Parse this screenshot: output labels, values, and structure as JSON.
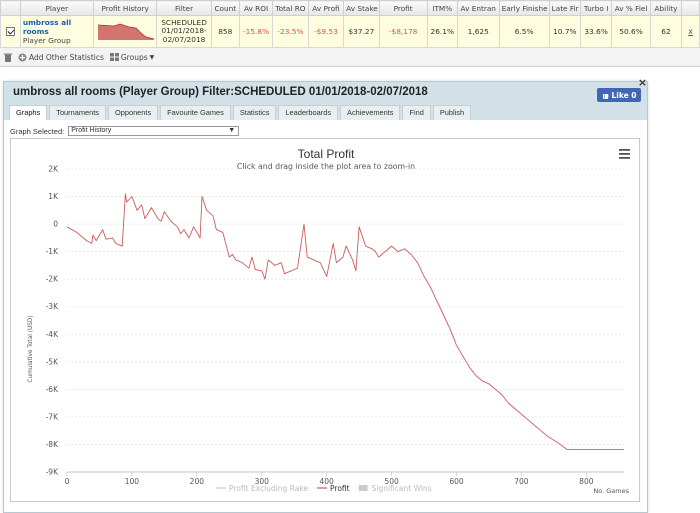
{
  "grid": {
    "headers": [
      "Player",
      "Profit History",
      "Filter",
      "Count",
      "Av ROI",
      "Total RO",
      "Av Profi",
      "Av Stake",
      "Profit",
      "ITM%",
      "Av Entran",
      "Early Finishe",
      "Late Fir",
      "Turbo I",
      "Av % Fiel",
      "Ability"
    ],
    "row": {
      "player_name": "umbross all rooms",
      "player_group": "Player Group",
      "filter_line1": "SCHEDULED",
      "filter_line2": "01/01/2018-",
      "filter_line3": "02/07/2018",
      "count": "858",
      "av_roi": "-15.8%",
      "total_roi": "-23.5%",
      "av_profit": "-$9.53",
      "av_stake": "$37.27",
      "profit": "-$8,178",
      "itm": "26.1%",
      "av_entrants": "1,625",
      "early_finish": "6.5%",
      "late_finish": "10.7%",
      "turbo": "33.6%",
      "av_field": "50.6%",
      "ability": "62",
      "remove": "x"
    },
    "toolbar": {
      "add_stats": "Add Other Statistics",
      "groups": "Groups"
    }
  },
  "dialog": {
    "title": "umbross all rooms (Player Group) Filter:SCHEDULED 01/01/2018-02/07/2018",
    "close": "×",
    "like_label": "Like 0",
    "tabs": [
      "Graphs",
      "Tournaments",
      "Opponents",
      "Favourite Games",
      "Statistics",
      "Leaderboards",
      "Achievements",
      "Find",
      "Publish"
    ],
    "graph_selected_label": "Graph Selected:",
    "graph_selected_value": "Profit History"
  },
  "chart_data": {
    "type": "line",
    "title": "Total Profit",
    "subtitle": "Click and drag inside the plot area to zoom-in",
    "ylabel": "Cumulative Total (USD)",
    "xlabel": "No. Games",
    "xlim": [
      0,
      858
    ],
    "ylim": [
      -9000,
      2000
    ],
    "x_ticks": [
      0,
      100,
      200,
      300,
      400,
      500,
      600,
      700,
      800
    ],
    "y_ticks": [
      2000,
      1000,
      0,
      -1000,
      -2000,
      -3000,
      -4000,
      -5000,
      -6000,
      -7000,
      -8000,
      -9000
    ],
    "y_tick_labels": [
      "2K",
      "1K",
      "0",
      "-1K",
      "-2K",
      "-3K",
      "-4K",
      "-5K",
      "-6K",
      "-7K",
      "-8K",
      "-9K"
    ],
    "grid": "horizontal",
    "legend_position": "bottom",
    "legend": [
      {
        "name": "Profit Excluding Rake",
        "color": "#cccccc",
        "visible": false
      },
      {
        "name": "Profit",
        "color": "#cd5c5c",
        "visible": true
      },
      {
        "name": "Significant Wins",
        "color": "#cccccc",
        "visible": false
      }
    ],
    "series": [
      {
        "name": "Profit",
        "color": "#cd5c5c",
        "x": [
          0,
          15,
          30,
          38,
          40,
          45,
          55,
          60,
          70,
          75,
          85,
          90,
          92,
          100,
          108,
          115,
          120,
          130,
          140,
          145,
          150,
          160,
          170,
          175,
          180,
          188,
          195,
          205,
          208,
          215,
          225,
          230,
          240,
          250,
          255,
          260,
          270,
          280,
          285,
          290,
          300,
          305,
          310,
          320,
          330,
          335,
          345,
          355,
          365,
          370,
          380,
          390,
          400,
          410,
          415,
          425,
          430,
          440,
          445,
          450,
          460,
          470,
          475,
          480,
          490,
          500,
          510,
          520,
          530,
          540,
          550,
          560,
          570,
          580,
          590,
          600,
          610,
          620,
          630,
          640,
          650,
          660,
          670,
          680,
          690,
          700,
          710,
          720,
          730,
          740,
          750,
          760,
          770,
          780,
          790,
          800,
          810,
          820,
          830,
          840,
          850,
          858
        ],
        "values": [
          -100,
          -300,
          -600,
          -700,
          -400,
          -600,
          -200,
          -550,
          -500,
          -700,
          -800,
          1100,
          800,
          1000,
          500,
          700,
          200,
          600,
          200,
          100,
          450,
          100,
          -100,
          -350,
          -200,
          -500,
          -100,
          -500,
          1000,
          500,
          300,
          -200,
          -300,
          -1200,
          -1100,
          -1300,
          -1400,
          -1600,
          -1200,
          -1650,
          -1700,
          -2000,
          -1300,
          -1500,
          -1400,
          -1800,
          -1700,
          -1600,
          0,
          -1200,
          -1300,
          -1400,
          -1900,
          -700,
          -1400,
          -1200,
          -800,
          -1300,
          -1700,
          -100,
          -800,
          -900,
          -1000,
          -1200,
          -1000,
          -800,
          -1000,
          -900,
          -1100,
          -1400,
          -1900,
          -2300,
          -2800,
          -3300,
          -3800,
          -4400,
          -4800,
          -5200,
          -5500,
          -5700,
          -5800,
          -6000,
          -6200,
          -6500,
          -6700,
          -6900,
          -7100,
          -7300,
          -7500,
          -7700,
          -7850,
          -8000,
          -8178,
          -8178,
          -8178,
          -8178,
          -8178,
          -8178,
          -8178,
          -8178,
          -8178,
          -8178
        ]
      }
    ]
  },
  "colors": {
    "accent_blue": "#1a5fb4",
    "negative": "#d9534f",
    "row_highlight": "#fffde0",
    "dialog_header": "#d2e1e8",
    "facebook": "#4267b2",
    "series": "#cd5c5c"
  },
  "icons": {
    "menu": "hamburger-menu-icon",
    "trash": "trash-icon",
    "add": "plus-icon",
    "groups": "groups-icon",
    "facebook": "facebook-icon"
  }
}
